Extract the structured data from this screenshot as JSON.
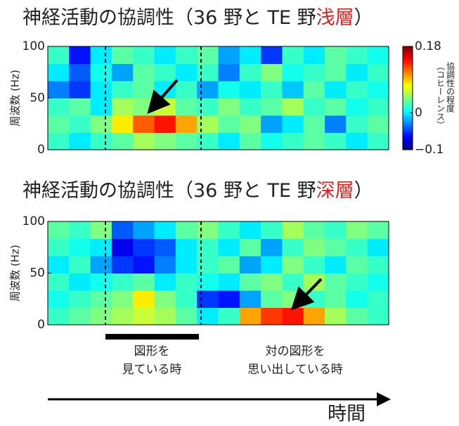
{
  "chart_data": [
    {
      "type": "heatmap",
      "title": "神経活動の協調性（36 野と TE 野",
      "title_highlight": "浅層",
      "title_end": "）",
      "ylabel": "周波数 (Hz)",
      "ylim": [
        0,
        100
      ],
      "yticks": [
        0,
        50,
        100
      ],
      "clim": [
        -0.1,
        0.18
      ],
      "cticks": [
        0.18,
        0,
        {
          "value": -0.1,
          "label": "−0.1"
        }
      ],
      "colorbar_label": [
        "協調性の程度",
        "（コヒーレンス）"
      ],
      "z": [
        [
          0.02,
          0.0,
          0.02,
          0.03,
          0.05,
          0.04,
          0.03,
          0.02,
          0.0,
          0.03,
          0.01,
          0.02,
          0.03,
          0.02,
          0.0,
          0.02
        ],
        [
          0.03,
          0.02,
          0.04,
          0.08,
          0.12,
          0.14,
          0.1,
          0.05,
          0.03,
          0.04,
          -0.02,
          0.0,
          0.03,
          -0.03,
          0.02,
          0.03
        ],
        [
          0.02,
          0.03,
          0.0,
          0.05,
          0.04,
          0.06,
          0.03,
          0.02,
          0.04,
          0.02,
          0.03,
          0.05,
          0.02,
          0.03,
          0.01,
          0.02
        ],
        [
          -0.03,
          -0.05,
          0.0,
          0.02,
          0.03,
          0.0,
          0.02,
          -0.02,
          0.01,
          0.0,
          0.02,
          -0.01,
          0.03,
          0.0,
          0.02,
          0.01
        ],
        [
          0.0,
          -0.04,
          0.01,
          -0.02,
          0.03,
          0.02,
          0.0,
          0.02,
          -0.03,
          0.02,
          0.04,
          0.01,
          0.02,
          0.03,
          0.0,
          0.02
        ],
        [
          0.02,
          -0.06,
          0.0,
          0.03,
          0.02,
          0.0,
          0.02,
          0.03,
          -0.02,
          0.0,
          -0.05,
          0.02,
          0.0,
          0.03,
          0.02,
          0.01
        ]
      ]
    },
    {
      "type": "heatmap",
      "title": "神経活動の協調性（36 野と TE 野",
      "title_highlight": "深層",
      "title_end": "）",
      "ylabel": "周波数 (Hz)",
      "ylim": [
        0,
        100
      ],
      "yticks": [
        0,
        50,
        100
      ],
      "clim": [
        -0.1,
        0.18
      ],
      "z": [
        [
          0.02,
          0.03,
          0.04,
          0.05,
          0.06,
          0.05,
          0.03,
          0.0,
          0.02,
          0.1,
          0.13,
          0.14,
          0.1,
          0.05,
          0.03,
          0.02
        ],
        [
          0.01,
          0.02,
          0.03,
          0.04,
          0.08,
          0.04,
          0.02,
          -0.05,
          -0.06,
          -0.02,
          0.03,
          0.04,
          0.02,
          0.03,
          0.01,
          0.02
        ],
        [
          0.02,
          0.0,
          0.01,
          0.02,
          0.03,
          0.0,
          0.02,
          0.01,
          0.0,
          0.03,
          0.04,
          0.02,
          0.05,
          0.03,
          0.02,
          0.01
        ],
        [
          0.0,
          0.02,
          -0.02,
          -0.05,
          -0.06,
          -0.03,
          0.0,
          0.02,
          0.03,
          -0.02,
          0.0,
          0.04,
          0.02,
          0.0,
          0.03,
          0.02
        ],
        [
          0.02,
          0.01,
          0.0,
          -0.07,
          -0.05,
          -0.04,
          0.0,
          0.02,
          0.0,
          0.03,
          -0.02,
          0.02,
          0.04,
          0.03,
          0.02,
          0.0
        ],
        [
          0.03,
          0.02,
          0.04,
          -0.04,
          -0.02,
          0.0,
          0.03,
          0.04,
          0.02,
          0.0,
          0.02,
          0.05,
          0.03,
          0.02,
          0.04,
          0.03
        ]
      ]
    }
  ],
  "events": [
    [
      "図形を",
      "見ている時"
    ],
    [
      "対の図形を",
      "思い出している時"
    ]
  ],
  "time_label": "時間"
}
